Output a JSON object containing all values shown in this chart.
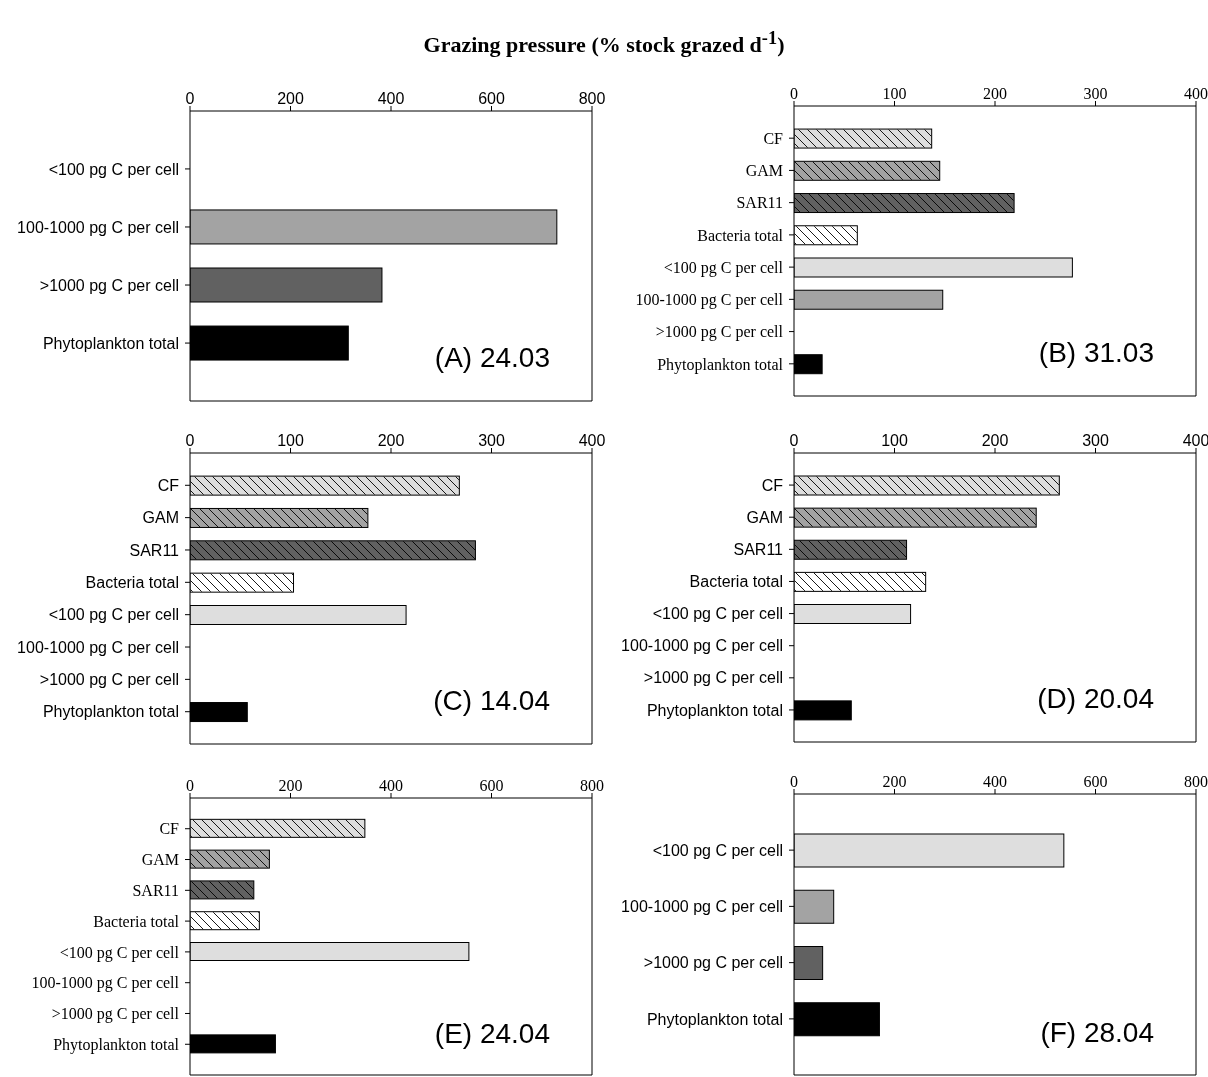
{
  "chart_data": [
    {
      "type": "bar",
      "orientation": "horizontal",
      "title": "Grazing pressure (% stock grazed d$^{-1}$)",
      "categories": [
        "<100 pg C per cell",
        "100-1000 pg C per cell",
        ">1000 pg C per cell",
        "Phytoplankton total"
      ],
      "values": [
        null,
        730,
        382,
        315
      ],
      "colors": [
        "#dedede",
        "#a3a3a3",
        "#616161",
        "#000000"
      ],
      "xlim": [
        0,
        800
      ],
      "xticks": [
        0,
        200,
        400,
        600,
        800
      ],
      "annotations": [
        "(A) 24.03"
      ]
    },
    {
      "type": "bar",
      "orientation": "horizontal",
      "categories": [
        "CF",
        "GAM",
        "SAR11",
        "Bacteria total",
        "<100 pg C per cell",
        "100-1000 pg C per cell",
        ">1000 pg C per cell",
        "Phytoplankton total"
      ],
      "values": [
        137,
        145,
        219,
        63,
        277,
        148,
        null,
        28
      ],
      "colors": [
        "#dedede",
        "#a3a3a3",
        "#616161",
        "#ffffff",
        "#dedede",
        "#a3a3a3",
        "#616161",
        "#000000"
      ],
      "xlim": [
        0,
        400
      ],
      "xticks": [
        0,
        100,
        200,
        300,
        400
      ],
      "annotations": [
        "(B) 31.03"
      ]
    },
    {
      "type": "bar",
      "orientation": "horizontal",
      "categories": [
        "CF",
        "GAM",
        "SAR11",
        "Bacteria total",
        "<100 pg C per cell",
        "100-1000 pg C per cell",
        ">1000 pg C per cell",
        "Phytoplankton total"
      ],
      "values": [
        268,
        177,
        284,
        103,
        215,
        null,
        null,
        57
      ],
      "colors": [
        "#dedede",
        "#a3a3a3",
        "#616161",
        "#ffffff",
        "#dedede",
        "#a3a3a3",
        "#616161",
        "#000000"
      ],
      "xlim": [
        0,
        400
      ],
      "xticks": [
        0,
        100,
        200,
        300,
        400
      ],
      "annotations": [
        "(C) 14.04"
      ]
    },
    {
      "type": "bar",
      "orientation": "horizontal",
      "categories": [
        "CF",
        "GAM",
        "SAR11",
        "Bacteria total",
        "<100 pg C per cell",
        "100-1000 pg C per cell",
        ">1000 pg C per cell",
        "Phytoplankton total"
      ],
      "values": [
        264,
        241,
        112,
        131,
        116,
        null,
        null,
        57
      ],
      "colors": [
        "#dedede",
        "#a3a3a3",
        "#616161",
        "#ffffff",
        "#dedede",
        "#a3a3a3",
        "#616161",
        "#000000"
      ],
      "xlim": [
        0,
        400
      ],
      "xticks": [
        0,
        100,
        200,
        300,
        400
      ],
      "annotations": [
        "(D) 20.04"
      ]
    },
    {
      "type": "bar",
      "orientation": "horizontal",
      "categories": [
        "CF",
        "GAM",
        "SAR11",
        "Bacteria total",
        "<100 pg C per cell",
        "100-1000 pg C per cell",
        ">1000 pg C per cell",
        "Phytoplankton total"
      ],
      "values": [
        348,
        158,
        127,
        138,
        555,
        null,
        null,
        170
      ],
      "colors": [
        "#dedede",
        "#a3a3a3",
        "#616161",
        "#ffffff",
        "#dedede",
        "#a3a3a3",
        "#616161",
        "#000000"
      ],
      "xlim": [
        0,
        800
      ],
      "xticks": [
        0,
        200,
        400,
        600,
        800
      ],
      "annotations": [
        "(E) 24.04"
      ]
    },
    {
      "type": "bar",
      "orientation": "horizontal",
      "categories": [
        "<100 pg C per cell",
        "100-1000 pg C per cell",
        ">1000 pg C per cell",
        "Phytoplankton total"
      ],
      "values": [
        537,
        79,
        57,
        170
      ],
      "colors": [
        "#dedede",
        "#a3a3a3",
        "#616161",
        "#000000"
      ],
      "xlim": [
        0,
        800
      ],
      "xticks": [
        0,
        200,
        400,
        600,
        800
      ],
      "annotations": [
        "(F) 28.04"
      ]
    }
  ]
}
